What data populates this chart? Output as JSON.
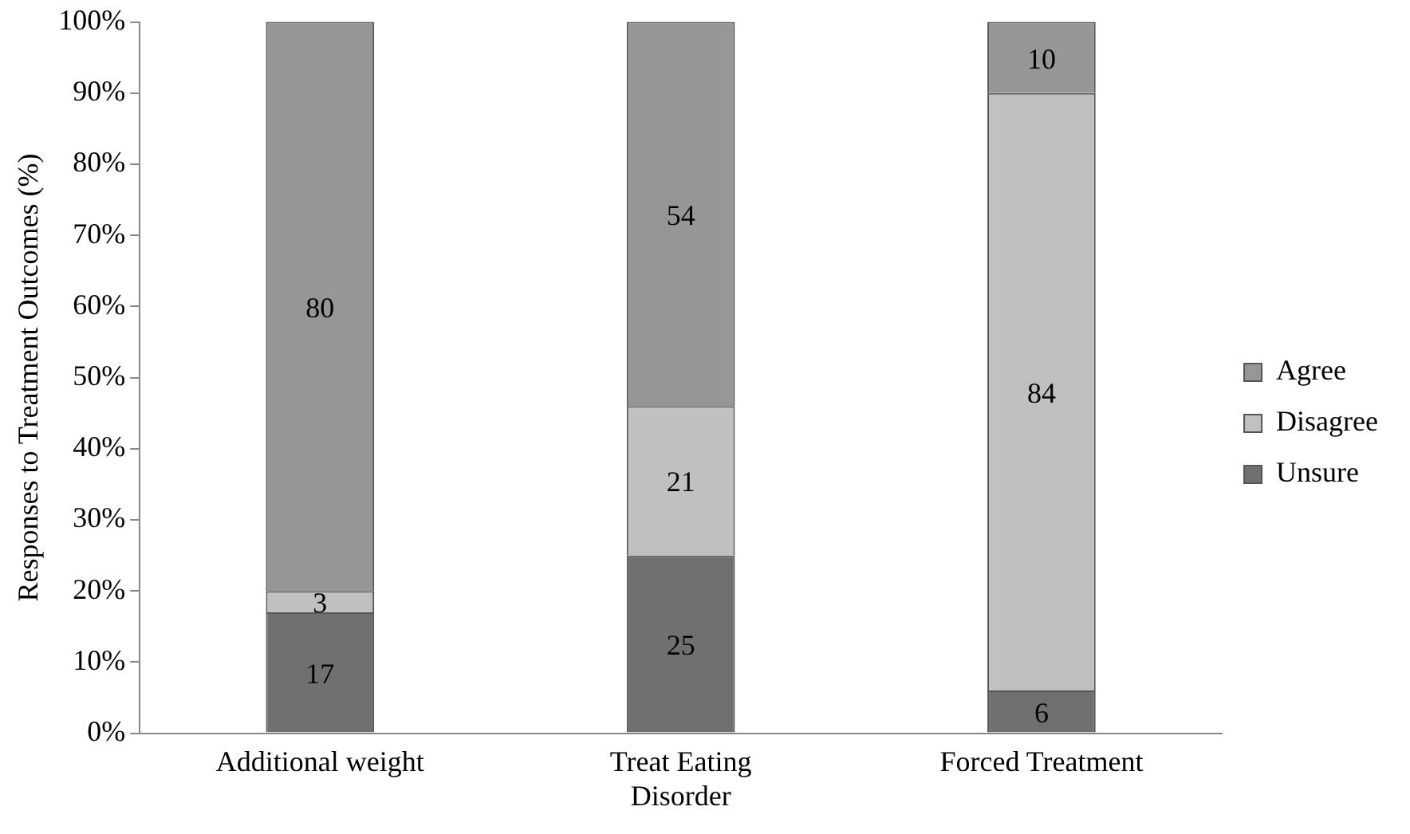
{
  "chart_data": {
    "type": "bar",
    "stacked": true,
    "ylabel": "Responses to Treatment Outcomes (%)",
    "categories": [
      "Additional weight",
      "Treat Eating Disorder",
      "Forced Treatment"
    ],
    "series": [
      {
        "name": "Unsure",
        "color": "#707070",
        "values": [
          17,
          25,
          6
        ]
      },
      {
        "name": "Disagree",
        "color": "#c0c0c0",
        "values": [
          3,
          21,
          84
        ]
      },
      {
        "name": "Agree",
        "color": "#969696",
        "values": [
          80,
          54,
          10
        ]
      }
    ],
    "ylim": [
      0,
      100
    ],
    "yticks": [
      {
        "value": 0,
        "label": "0%"
      },
      {
        "value": 10,
        "label": "10%"
      },
      {
        "value": 20,
        "label": "20%"
      },
      {
        "value": 30,
        "label": "30%"
      },
      {
        "value": 40,
        "label": "40%"
      },
      {
        "value": 50,
        "label": "50%"
      },
      {
        "value": 60,
        "label": "60%"
      },
      {
        "value": 70,
        "label": "70%"
      },
      {
        "value": 80,
        "label": "80%"
      },
      {
        "value": 90,
        "label": "90%"
      },
      {
        "value": 100,
        "label": "100%"
      }
    ],
    "grid": false,
    "legend": "right",
    "data_labels": true
  }
}
